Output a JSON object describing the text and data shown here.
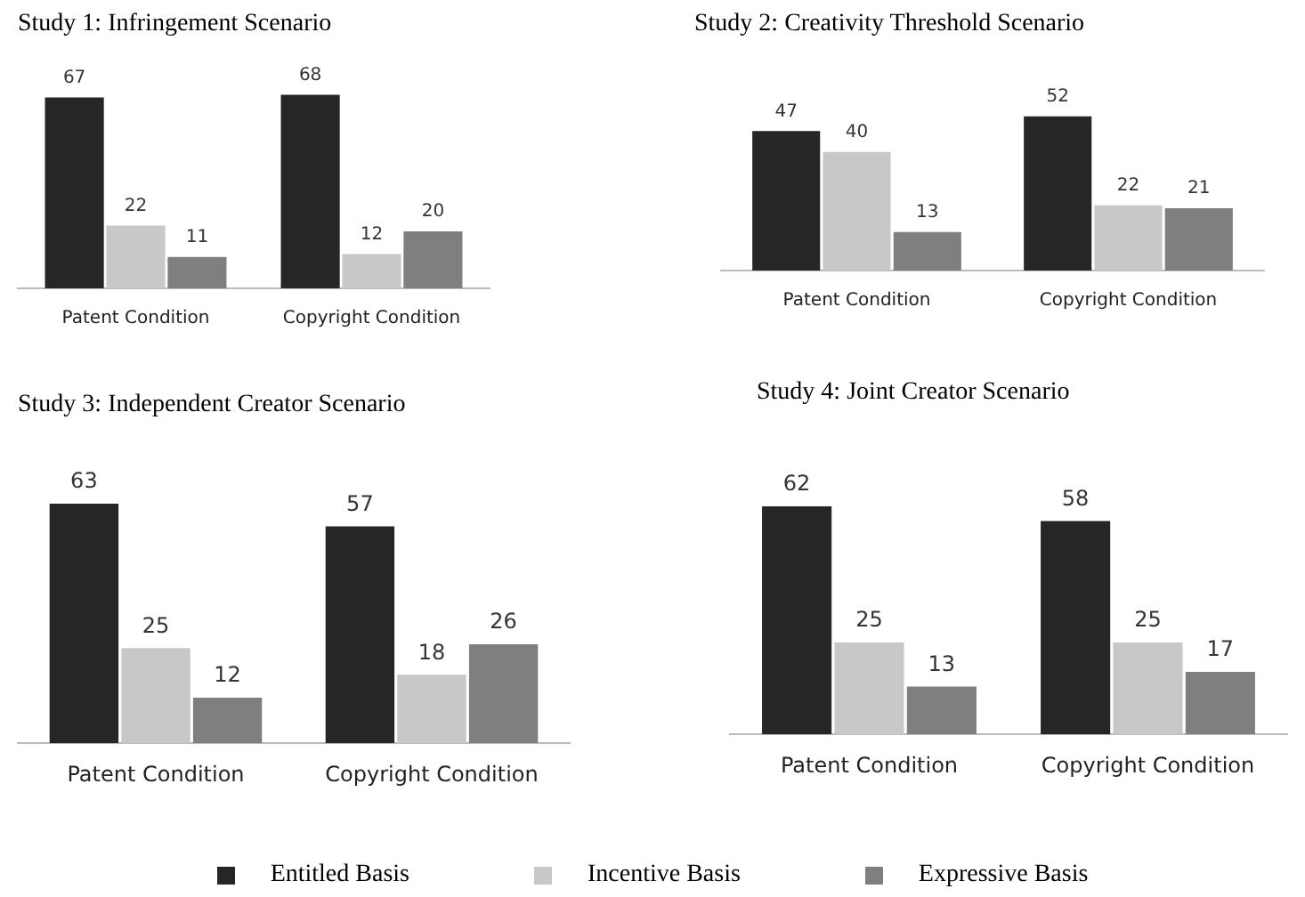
{
  "chart_data": [
    {
      "type": "bar",
      "title": "Study 1:  Infringement Scenario",
      "categories": [
        "Patent Condition",
        "Copyright Condition"
      ],
      "data_labels": true,
      "legend": "bottom",
      "series": [
        {
          "name": "Entitled Basis",
          "color": "#262626",
          "values": [
            67,
            68
          ]
        },
        {
          "name": "Incentive Basis",
          "color": "#c8c8c8",
          "values": [
            22,
            12
          ]
        },
        {
          "name": "Expressive  Basis",
          "color": "#7f7f7f",
          "values": [
            11,
            20
          ]
        }
      ]
    },
    {
      "type": "bar",
      "title": "Study 2:  Creativity Threshold Scenario",
      "categories": [
        "Patent Condition",
        "Copyright Condition"
      ],
      "data_labels": true,
      "series": [
        {
          "color": "#262626",
          "values": [
            47,
            52
          ]
        },
        {
          "color": "#c8c8c8",
          "values": [
            40,
            22
          ]
        },
        {
          "color": "#7f7f7f",
          "values": [
            13,
            21
          ]
        }
      ]
    },
    {
      "type": "bar",
      "title": "Study 3:  Independent Creator Scenario",
      "categories": [
        "Patent Condition",
        "Copyright Condition"
      ],
      "data_labels": true,
      "series": [
        {
          "color": "#262626",
          "values": [
            63,
            57
          ]
        },
        {
          "color": "#c8c8c8",
          "values": [
            25,
            18
          ]
        },
        {
          "color": "#7f7f7f",
          "values": [
            12,
            26
          ]
        }
      ]
    },
    {
      "type": "bar",
      "title": "Study 4:  Joint Creator Scenario",
      "categories": [
        "Patent Condition",
        "Copyright Condition"
      ],
      "data_labels": true,
      "series": [
        {
          "color": "#262626",
          "values": [
            62,
            58
          ]
        },
        {
          "color": "#c8c8c8",
          "values": [
            25,
            25
          ]
        },
        {
          "color": "#7f7f7f",
          "values": [
            13,
            17
          ]
        }
      ]
    }
  ]
}
